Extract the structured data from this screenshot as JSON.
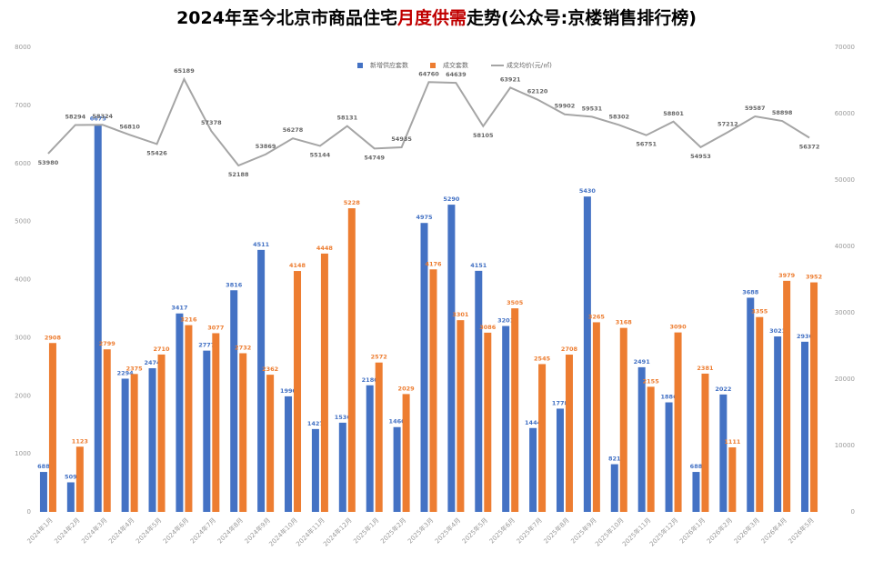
{
  "chart_data": {
    "type": "bar",
    "title": [
      "2024年至今北京市商品住宅",
      "月度供需",
      "走势(公众号:京楼销售排行榜)"
    ],
    "categories": [
      "2024年1月",
      "2024年2月",
      "2024年3月",
      "2024年4月",
      "2024年5月",
      "2024年6月",
      "2024年7月",
      "2024年8月",
      "2024年9月",
      "2024年10月",
      "2024年11月",
      "2024年12月",
      "2025年1月",
      "2025年2月",
      "2025年3月",
      "2025年4月",
      "2025年5月",
      "2025年6月",
      "2025年7月",
      "2025年8月",
      "2025年9月",
      "2025年10月",
      "2025年11月",
      "2025年12月",
      "2026年1月",
      "2026年2月",
      "2026年3月",
      "2026年4月",
      "2026年5月"
    ],
    "series": [
      {
        "name": "新增供应套数",
        "type": "bar",
        "color": "#4472c4",
        "values": [
          688,
          509,
          6675,
          2294,
          2474,
          3417,
          2777,
          3816,
          4511,
          1990,
          1427,
          1536,
          2180,
          1460,
          4975,
          5290,
          4151,
          3201,
          1444,
          1778,
          5430,
          821,
          2491,
          1886,
          688,
          2022,
          3688,
          3021,
          2930
        ]
      },
      {
        "name": "成交套数",
        "type": "bar",
        "color": "#ed7d31",
        "values": [
          2908,
          1123,
          2799,
          2375,
          2710,
          3216,
          3077,
          2732,
          2362,
          4148,
          4448,
          5228,
          2572,
          2029,
          4176,
          3301,
          3086,
          3505,
          2545,
          2708,
          3265,
          3168,
          2155,
          3090,
          2381,
          1111,
          3355,
          3979,
          3952
        ]
      },
      {
        "name": "成交均价(元/㎡)",
        "type": "line",
        "axis": "y2",
        "color": "#a5a5a5",
        "values": [
          53980,
          58294,
          58324,
          56810,
          55426,
          65189,
          57378,
          52188,
          53869,
          56278,
          55144,
          58131,
          54749,
          54935,
          64760,
          64639,
          58105,
          63921,
          62120,
          59902,
          59531,
          58302,
          56751,
          58801,
          54953,
          57212,
          59587,
          58898,
          56372
        ]
      }
    ],
    "ylim": [
      0,
      8000
    ],
    "yticks": [
      0,
      1000,
      2000,
      3000,
      4000,
      5000,
      6000,
      7000,
      8000
    ],
    "y2lim": [
      0,
      70000
    ],
    "y2ticks": [
      0,
      10000,
      20000,
      30000,
      40000,
      50000,
      60000,
      70000
    ],
    "title_highlight_color": "#c00000",
    "grid": false
  }
}
